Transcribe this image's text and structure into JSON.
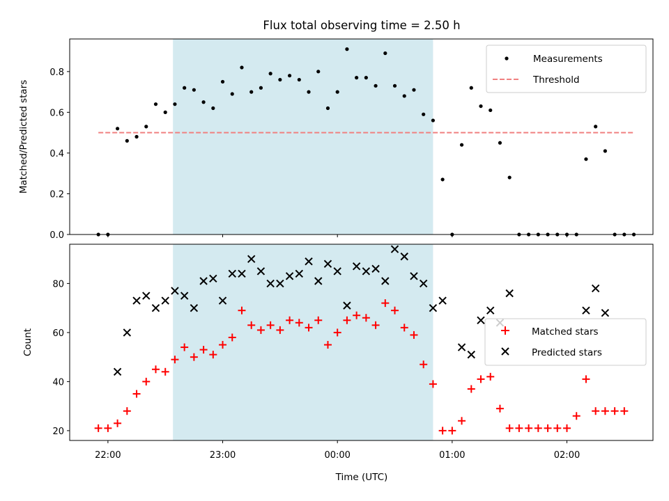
{
  "chart_data": [
    {
      "type": "scatter",
      "title": "Flux total observing time = 2.50 h",
      "xlabel": "",
      "ylabel": "Matched/Predicted stars",
      "ylim": [
        0,
        0.96
      ],
      "yticks": [
        "0.0",
        "0.2",
        "0.4",
        "0.6",
        "0.8"
      ],
      "xaxis": {
        "min": "21:40",
        "max": "02:45",
        "unit": "hh:mm"
      },
      "shaded_span": {
        "start": "22:34",
        "end": "00:50",
        "color": "#d4eaf0"
      },
      "legend_position": "upper right",
      "series": [
        {
          "name": "Measurements",
          "marker": "dot",
          "color": "#000000",
          "points": [
            [
              "21:55",
              0.0
            ],
            [
              "21:60",
              0.0
            ],
            [
              "22:05",
              0.52
            ],
            [
              "22:10",
              0.46
            ],
            [
              "22:15",
              0.48
            ],
            [
              "22:20",
              0.53
            ],
            [
              "22:25",
              0.64
            ],
            [
              "22:30",
              0.6
            ],
            [
              "22:35",
              0.64
            ],
            [
              "22:40",
              0.72
            ],
            [
              "22:45",
              0.71
            ],
            [
              "22:50",
              0.65
            ],
            [
              "22:55",
              0.62
            ],
            [
              "23:00",
              0.75
            ],
            [
              "23:05",
              0.69
            ],
            [
              "23:10",
              0.82
            ],
            [
              "23:15",
              0.7
            ],
            [
              "23:20",
              0.72
            ],
            [
              "23:25",
              0.79
            ],
            [
              "23:30",
              0.76
            ],
            [
              "23:35",
              0.78
            ],
            [
              "23:40",
              0.76
            ],
            [
              "23:45",
              0.7
            ],
            [
              "23:50",
              0.8
            ],
            [
              "23:55",
              0.62
            ],
            [
              "00:00",
              0.7
            ],
            [
              "00:05",
              0.91
            ],
            [
              "00:10",
              0.77
            ],
            [
              "00:15",
              0.77
            ],
            [
              "00:20",
              0.73
            ],
            [
              "00:25",
              0.89
            ],
            [
              "00:30",
              0.73
            ],
            [
              "00:35",
              0.68
            ],
            [
              "00:40",
              0.71
            ],
            [
              "00:45",
              0.59
            ],
            [
              "00:50",
              0.56
            ],
            [
              "00:55",
              0.27
            ],
            [
              "01:00",
              0.0
            ],
            [
              "01:05",
              0.44
            ],
            [
              "01:10",
              0.72
            ],
            [
              "01:15",
              0.63
            ],
            [
              "01:20",
              0.61
            ],
            [
              "01:25",
              0.45
            ],
            [
              "01:30",
              0.28
            ],
            [
              "01:35",
              0.0
            ],
            [
              "01:40",
              0.0
            ],
            [
              "01:45",
              0.0
            ],
            [
              "01:50",
              0.0
            ],
            [
              "01:55",
              0.0
            ],
            [
              "02:00",
              0.0
            ],
            [
              "02:05",
              0.0
            ],
            [
              "02:10",
              0.37
            ],
            [
              "02:15",
              0.53
            ],
            [
              "02:20",
              0.41
            ],
            [
              "02:25",
              0.0
            ],
            [
              "02:30",
              0.0
            ],
            [
              "02:35",
              0.0
            ]
          ]
        },
        {
          "name": "Threshold",
          "line": "dashed",
          "color": "#f08080",
          "y": 0.5,
          "x_range": [
            "21:55",
            "02:35"
          ]
        }
      ]
    },
    {
      "type": "scatter",
      "title": "",
      "xlabel": "Time (UTC)",
      "ylabel": "Count",
      "ylim": [
        16,
        96
      ],
      "yticks": [
        "20",
        "40",
        "60",
        "80"
      ],
      "xticks": [
        "22:00",
        "23:00",
        "00:00",
        "01:00",
        "02:00"
      ],
      "xaxis": {
        "min": "21:40",
        "max": "02:45",
        "unit": "hh:mm"
      },
      "shaded_span": {
        "start": "22:34",
        "end": "00:50",
        "color": "#d4eaf0"
      },
      "legend_position": "center right",
      "series": [
        {
          "name": "Matched stars",
          "marker": "plus",
          "color": "#ff0000",
          "points": [
            [
              "21:55",
              21
            ],
            [
              "21:60",
              21
            ],
            [
              "22:05",
              23
            ],
            [
              "22:10",
              28
            ],
            [
              "22:15",
              35
            ],
            [
              "22:20",
              40
            ],
            [
              "22:25",
              45
            ],
            [
              "22:30",
              44
            ],
            [
              "22:35",
              49
            ],
            [
              "22:40",
              54
            ],
            [
              "22:45",
              50
            ],
            [
              "22:50",
              53
            ],
            [
              "22:55",
              51
            ],
            [
              "23:00",
              55
            ],
            [
              "23:05",
              58
            ],
            [
              "23:10",
              69
            ],
            [
              "23:15",
              63
            ],
            [
              "23:20",
              61
            ],
            [
              "23:25",
              63
            ],
            [
              "23:30",
              61
            ],
            [
              "23:35",
              65
            ],
            [
              "23:40",
              64
            ],
            [
              "23:45",
              62
            ],
            [
              "23:50",
              65
            ],
            [
              "23:55",
              55
            ],
            [
              "00:00",
              60
            ],
            [
              "00:05",
              65
            ],
            [
              "00:10",
              67
            ],
            [
              "00:15",
              66
            ],
            [
              "00:20",
              63
            ],
            [
              "00:25",
              72
            ],
            [
              "00:30",
              69
            ],
            [
              "00:35",
              62
            ],
            [
              "00:40",
              59
            ],
            [
              "00:45",
              47
            ],
            [
              "00:50",
              39
            ],
            [
              "00:55",
              20
            ],
            [
              "01:00",
              20
            ],
            [
              "01:05",
              24
            ],
            [
              "01:10",
              37
            ],
            [
              "01:15",
              41
            ],
            [
              "01:20",
              42
            ],
            [
              "01:25",
              29
            ],
            [
              "01:30",
              21
            ],
            [
              "01:35",
              21
            ],
            [
              "01:40",
              21
            ],
            [
              "01:45",
              21
            ],
            [
              "01:50",
              21
            ],
            [
              "01:55",
              21
            ],
            [
              "02:00",
              21
            ],
            [
              "02:05",
              26
            ],
            [
              "02:10",
              41
            ],
            [
              "02:15",
              28
            ],
            [
              "02:20",
              28
            ],
            [
              "02:25",
              28
            ],
            [
              "02:30",
              28
            ]
          ]
        },
        {
          "name": "Predicted stars",
          "marker": "x",
          "color": "#000000",
          "points": [
            [
              "22:05",
              44
            ],
            [
              "22:10",
              60
            ],
            [
              "22:15",
              73
            ],
            [
              "22:20",
              75
            ],
            [
              "22:25",
              70
            ],
            [
              "22:30",
              73
            ],
            [
              "22:35",
              77
            ],
            [
              "22:40",
              75
            ],
            [
              "22:45",
              70
            ],
            [
              "22:50",
              81
            ],
            [
              "22:55",
              82
            ],
            [
              "23:00",
              73
            ],
            [
              "23:05",
              84
            ],
            [
              "23:10",
              84
            ],
            [
              "23:15",
              90
            ],
            [
              "23:20",
              85
            ],
            [
              "23:25",
              80
            ],
            [
              "23:30",
              80
            ],
            [
              "23:35",
              83
            ],
            [
              "23:40",
              84
            ],
            [
              "23:45",
              89
            ],
            [
              "23:50",
              81
            ],
            [
              "23:55",
              88
            ],
            [
              "00:00",
              85
            ],
            [
              "00:05",
              71
            ],
            [
              "00:10",
              87
            ],
            [
              "00:15",
              85
            ],
            [
              "00:20",
              86
            ],
            [
              "00:25",
              81
            ],
            [
              "00:30",
              94
            ],
            [
              "00:35",
              91
            ],
            [
              "00:40",
              83
            ],
            [
              "00:45",
              80
            ],
            [
              "00:50",
              70
            ],
            [
              "00:55",
              73
            ],
            [
              "01:05",
              54
            ],
            [
              "01:10",
              51
            ],
            [
              "01:15",
              65
            ],
            [
              "01:20",
              69
            ],
            [
              "01:25",
              64
            ],
            [
              "01:30",
              76
            ],
            [
              "02:10",
              69
            ],
            [
              "02:15",
              78
            ],
            [
              "02:20",
              68
            ]
          ]
        }
      ]
    }
  ]
}
